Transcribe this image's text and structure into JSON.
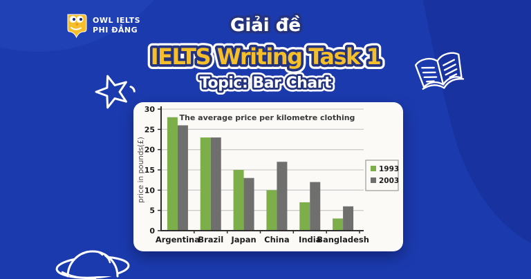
{
  "brand": {
    "line1": "OWL IELTS",
    "line2": "PHI ĐẲNG"
  },
  "header": {
    "subtitle": "Giải đề",
    "title": "IELTS Writing Task 1",
    "topic": "Topic: Bar Chart"
  },
  "colors": {
    "background": "#1B3AAE",
    "background_dark_blob": "#18339D",
    "background_light_blob": "#2446BB",
    "accent_yellow": "#F5BE2B",
    "outline_navy": "#23337F",
    "card": "#FBFAF7",
    "bar_1993": "#7CAE49",
    "bar_2003": "#6F6F6D",
    "gridline": "#CCCCCC",
    "axis": "#2E2E2E"
  },
  "icons": {
    "owl-logo-icon": "🦉",
    "star-icon": "☆",
    "open-book-icon": "📖",
    "planet-icon": "🪐"
  },
  "chart_data": {
    "type": "bar",
    "title": "The average price per kilometre clothing",
    "xlabel": "",
    "ylabel": "price in pounds(£)",
    "categories": [
      "Argentina",
      "Brazil",
      "Japan",
      "China",
      "India",
      "Bangladesh"
    ],
    "series": [
      {
        "name": "1993",
        "color": "#7CAE49",
        "values": [
          28,
          23,
          15,
          10,
          7,
          3
        ]
      },
      {
        "name": "2003",
        "color": "#6F6F6D",
        "values": [
          26,
          23,
          13,
          17,
          12,
          6
        ]
      }
    ],
    "ylim": [
      0,
      30
    ],
    "yticks": [
      0,
      5,
      10,
      15,
      20,
      25,
      30
    ],
    "grid": true,
    "legend_position": "right"
  }
}
